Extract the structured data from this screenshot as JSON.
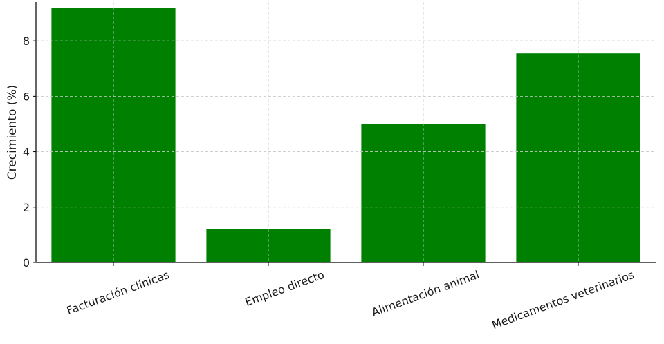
{
  "chart_data": {
    "type": "bar",
    "categories": [
      "Facturación clínicas",
      "Empleo directo",
      "Alimentación animal",
      "Medicamentos veterinarios"
    ],
    "values": [
      9.2,
      1.2,
      5.0,
      7.55
    ],
    "title": "",
    "xlabel": "",
    "ylabel": "Crecimiento (%)",
    "ylim": [
      0,
      9.4
    ],
    "yticks": [
      0,
      2,
      4,
      6,
      8
    ],
    "grid": true,
    "bar_color": "#008000"
  }
}
